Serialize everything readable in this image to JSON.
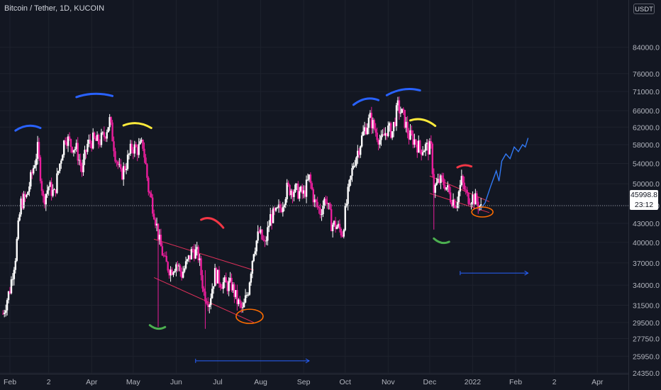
{
  "header": {
    "title": "Bitcoin / Tether, 1D, KUCOIN"
  },
  "currency_button": {
    "label": "USDT"
  },
  "last_price": {
    "value": "45998.8",
    "countdown": "23:12"
  },
  "colors": {
    "background": "#131722",
    "candle_up": "#ffffff",
    "candle_down": "#e91e9b",
    "blue": "#2962ff",
    "yellow": "#ffeb3b",
    "red": "#f23645",
    "green": "#4caf50",
    "orange": "#ff6d00",
    "projection": "#3179f5"
  },
  "chart_data": {
    "type": "candlestick",
    "title": "Bitcoin / Tether, 1D, KUCOIN",
    "y_scale": "log",
    "ylim": [
      24350,
      95000
    ],
    "y_ticks": [
      "84000.0",
      "76000.0",
      "71000.0",
      "66000.0",
      "62000.0",
      "58000.0",
      "54000.0",
      "50000.0",
      "46000.0",
      "43000.0",
      "40000.0",
      "37000.0",
      "34000.0",
      "31500.0",
      "29500.0",
      "27750.0",
      "25950.0",
      "24350.0"
    ],
    "x_ticks": [
      "Feb",
      "2",
      "Apr",
      "May",
      "Jun",
      "Jul",
      "Aug",
      "Sep",
      "Oct",
      "Nov",
      "Dec",
      "2022",
      "Feb",
      "2",
      "Apr"
    ],
    "last_price": 45998.8,
    "grid": true,
    "series": [
      {
        "name": "",
        "points": [
          [
            "2021-01-27",
            30500
          ],
          [
            "2021-02-01",
            33500
          ],
          [
            "2021-02-05",
            38000
          ],
          [
            "2021-02-09",
            46500
          ],
          [
            "2021-02-13",
            47500
          ],
          [
            "2021-02-17",
            52000
          ],
          [
            "2021-02-21",
            57000
          ],
          [
            "2021-02-25",
            47000
          ],
          [
            "2021-03-01",
            49500
          ],
          [
            "2021-03-05",
            48000
          ],
          [
            "2021-03-09",
            54000
          ],
          [
            "2021-03-13",
            60000
          ],
          [
            "2021-03-17",
            58000
          ],
          [
            "2021-03-21",
            57000
          ],
          [
            "2021-03-25",
            52500
          ],
          [
            "2021-03-29",
            58000
          ],
          [
            "2021-04-02",
            59000
          ],
          [
            "2021-04-06",
            58500
          ],
          [
            "2021-04-10",
            60000
          ],
          [
            "2021-04-14",
            63500
          ],
          [
            "2021-04-18",
            56000
          ],
          [
            "2021-04-22",
            51500
          ],
          [
            "2021-04-26",
            54000
          ],
          [
            "2021-04-30",
            57500
          ],
          [
            "2021-05-04",
            57000
          ],
          [
            "2021-05-08",
            58000
          ],
          [
            "2021-05-12",
            49000
          ],
          [
            "2021-05-16",
            45000
          ],
          [
            "2021-05-20",
            40000
          ],
          [
            "2021-05-24",
            37000
          ],
          [
            "2021-05-28",
            36000
          ],
          [
            "2021-06-01",
            37000
          ],
          [
            "2021-06-05",
            35500
          ],
          [
            "2021-06-09",
            37000
          ],
          [
            "2021-06-13",
            39000
          ],
          [
            "2021-06-17",
            38000
          ],
          [
            "2021-06-21",
            33000
          ],
          [
            "2021-06-25",
            32000
          ],
          [
            "2021-06-29",
            35500
          ],
          [
            "2021-07-03",
            34500
          ],
          [
            "2021-07-07",
            34000
          ],
          [
            "2021-07-11",
            34000
          ],
          [
            "2021-07-15",
            32000
          ],
          [
            "2021-07-19",
            30800
          ],
          [
            "2021-07-23",
            33500
          ],
          [
            "2021-07-27",
            39000
          ],
          [
            "2021-07-31",
            41500
          ],
          [
            "2021-08-04",
            39500
          ],
          [
            "2021-08-08",
            44000
          ],
          [
            "2021-08-12",
            44500
          ],
          [
            "2021-08-16",
            46000
          ],
          [
            "2021-08-20",
            49000
          ],
          [
            "2021-08-24",
            49000
          ],
          [
            "2021-08-28",
            48500
          ],
          [
            "2021-09-01",
            48000
          ],
          [
            "2021-09-05",
            51000
          ],
          [
            "2021-09-09",
            46500
          ],
          [
            "2021-09-13",
            45000
          ],
          [
            "2021-09-17",
            47500
          ],
          [
            "2021-09-21",
            43000
          ],
          [
            "2021-09-25",
            42500
          ],
          [
            "2021-09-29",
            41500
          ],
          [
            "2021-10-03",
            48000
          ],
          [
            "2021-10-07",
            54000
          ],
          [
            "2021-10-11",
            57500
          ],
          [
            "2021-10-15",
            61500
          ],
          [
            "2021-10-19",
            64000
          ],
          [
            "2021-10-23",
            61000
          ],
          [
            "2021-10-27",
            58500
          ],
          [
            "2021-10-31",
            61500
          ],
          [
            "2021-11-04",
            61000
          ],
          [
            "2021-11-08",
            67000
          ],
          [
            "2021-11-12",
            64500
          ],
          [
            "2021-11-16",
            60000
          ],
          [
            "2021-11-20",
            59000
          ],
          [
            "2021-11-24",
            57000
          ],
          [
            "2021-11-28",
            57500
          ],
          [
            "2021-12-02",
            57000
          ],
          [
            "2021-12-04",
            49000
          ],
          [
            "2021-12-08",
            50500
          ],
          [
            "2021-12-12",
            50000
          ],
          [
            "2021-12-16",
            47500
          ],
          [
            "2021-12-20",
            46500
          ],
          [
            "2021-12-24",
            50500
          ],
          [
            "2021-12-28",
            47500
          ],
          [
            "2022-01-01",
            47500
          ],
          [
            "2022-01-05",
            46500
          ],
          [
            "2022-01-07",
            45500
          ]
        ]
      },
      {
        "name": "",
        "points": [
          [
            "2022-01-07",
            45500
          ],
          [
            "2022-01-10",
            46500
          ],
          [
            "2022-01-14",
            49500
          ],
          [
            "2022-01-18",
            52500
          ],
          [
            "2022-01-20",
            50500
          ],
          [
            "2022-01-22",
            54500
          ],
          [
            "2022-01-25",
            56000
          ],
          [
            "2022-01-28",
            55000
          ],
          [
            "2022-01-31",
            57500
          ],
          [
            "2022-02-03",
            56500
          ],
          [
            "2022-02-06",
            58000
          ],
          [
            "2022-02-08",
            57500
          ],
          [
            "2022-02-10",
            59500
          ]
        ]
      }
    ]
  }
}
